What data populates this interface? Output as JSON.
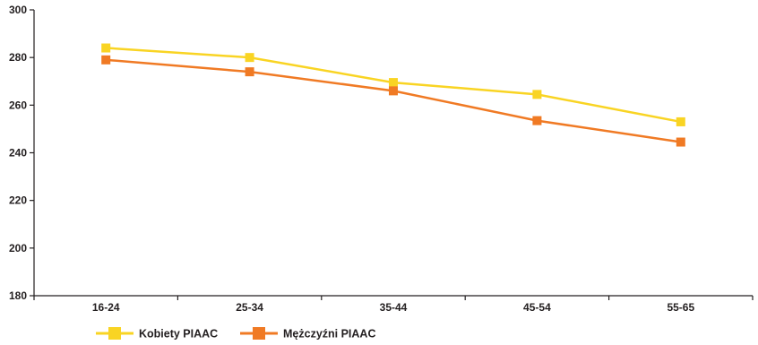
{
  "chart_data": {
    "type": "line",
    "categories": [
      "16-24",
      "25-34",
      "35-44",
      "45-54",
      "55-65"
    ],
    "series": [
      {
        "name": "Kobiety PIAAC",
        "values": [
          284,
          280,
          269.5,
          264.5,
          253
        ],
        "color": "#f9d423"
      },
      {
        "name": "Mężczyźni PIAAC",
        "values": [
          279,
          274,
          266,
          253.5,
          244.5
        ],
        "color": "#f07a24"
      }
    ],
    "ylim": [
      180,
      300
    ],
    "yticks": [
      180,
      200,
      220,
      240,
      260,
      280,
      300
    ],
    "grid": false,
    "legend": "bottom-left",
    "title": "",
    "xlabel": "",
    "ylabel": ""
  }
}
